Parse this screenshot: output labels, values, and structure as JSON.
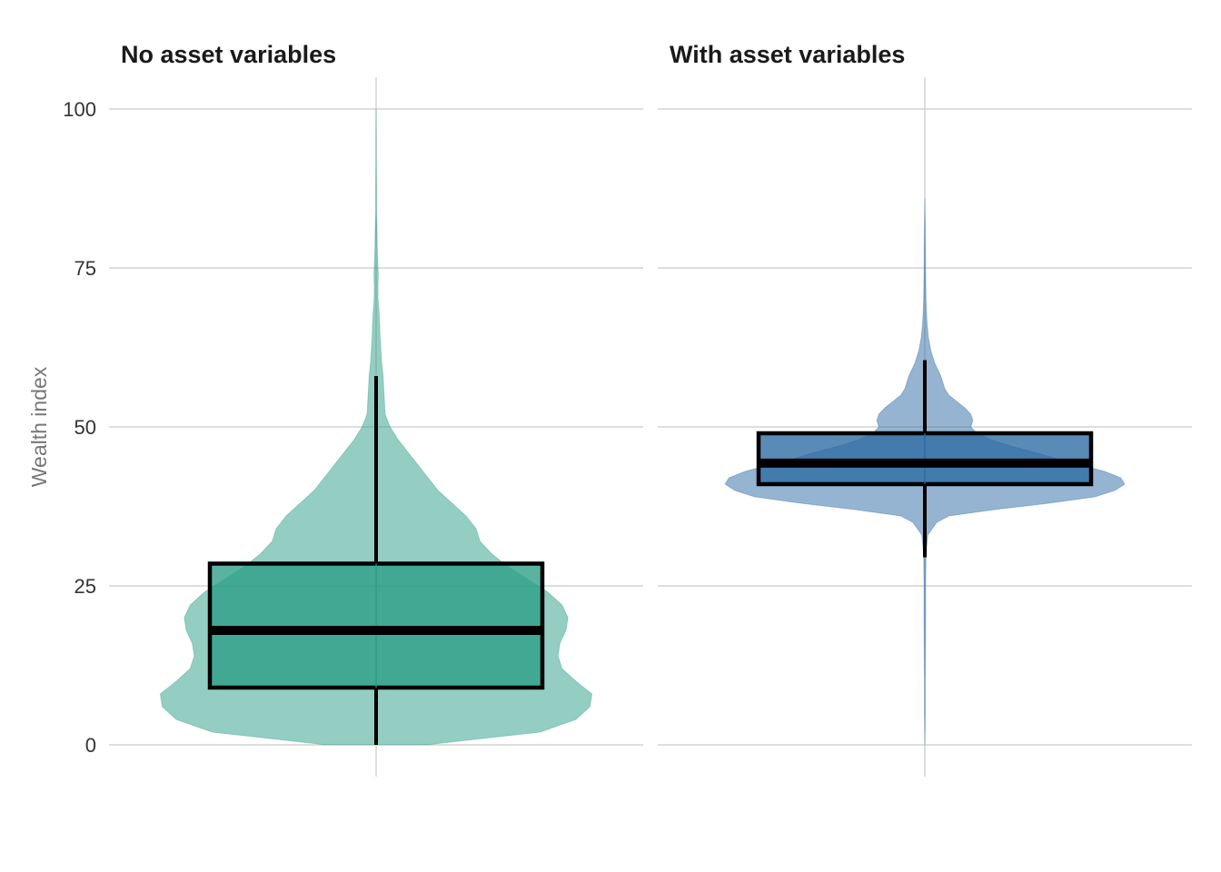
{
  "chart_data": {
    "type": "violin",
    "ylabel": "Wealth index",
    "ylim": [
      0,
      100
    ],
    "yticks": [
      0,
      25,
      50,
      75,
      100
    ],
    "yticklabels": [
      "0",
      "25",
      "50",
      "75",
      "100"
    ],
    "grid": true,
    "legend": "none",
    "panels": [
      {
        "title": "No asset variables",
        "fill_color": "#2a9d85",
        "box": {
          "whisker_low": 0,
          "q1": 9,
          "median": 18,
          "q3": 28.5,
          "whisker_high": 58
        },
        "density": [
          [
            0,
            0.25
          ],
          [
            2,
            0.82
          ],
          [
            4,
            1.0
          ],
          [
            6,
            1.07
          ],
          [
            8,
            1.08
          ],
          [
            10,
            1.0
          ],
          [
            12,
            0.93
          ],
          [
            14,
            0.91
          ],
          [
            16,
            0.92
          ],
          [
            18,
            0.95
          ],
          [
            20,
            0.96
          ],
          [
            22,
            0.93
          ],
          [
            24,
            0.86
          ],
          [
            26,
            0.76
          ],
          [
            28,
            0.66
          ],
          [
            30,
            0.58
          ],
          [
            32,
            0.52
          ],
          [
            34,
            0.5
          ],
          [
            36,
            0.45
          ],
          [
            38,
            0.38
          ],
          [
            40,
            0.31
          ],
          [
            42,
            0.26
          ],
          [
            44,
            0.21
          ],
          [
            46,
            0.16
          ],
          [
            48,
            0.11
          ],
          [
            50,
            0.07
          ],
          [
            52,
            0.045
          ],
          [
            54,
            0.042
          ],
          [
            56,
            0.038
          ],
          [
            58,
            0.035
          ],
          [
            60,
            0.028
          ],
          [
            62,
            0.024
          ],
          [
            64,
            0.02
          ],
          [
            66,
            0.018
          ],
          [
            68,
            0.015
          ],
          [
            70,
            0.01
          ],
          [
            72,
            0.009
          ],
          [
            74,
            0.011
          ],
          [
            76,
            0.008
          ],
          [
            78,
            0.006
          ],
          [
            80,
            0.005
          ],
          [
            82,
            0.004
          ],
          [
            84,
            0.002
          ],
          [
            88,
            0.002
          ],
          [
            92,
            0.001
          ],
          [
            96,
            0.001
          ],
          [
            100,
            0
          ]
        ]
      },
      {
        "title": "With asset variables",
        "fill_color": "#2b6aa3",
        "box": {
          "whisker_low": 29.5,
          "q1": 41,
          "median": 44.3,
          "q3": 49,
          "whisker_high": 60.5
        },
        "density": [
          [
            0,
            0
          ],
          [
            5,
            0.002
          ],
          [
            10,
            0.002
          ],
          [
            15,
            0.003
          ],
          [
            20,
            0.004
          ],
          [
            25,
            0.004
          ],
          [
            30,
            0.006
          ],
          [
            33,
            0.015
          ],
          [
            35,
            0.06
          ],
          [
            36,
            0.12
          ],
          [
            37,
            0.35
          ],
          [
            38,
            0.62
          ],
          [
            39,
            0.85
          ],
          [
            40,
            0.95
          ],
          [
            41,
            1.0
          ],
          [
            42,
            0.98
          ],
          [
            43,
            0.9
          ],
          [
            44,
            0.78
          ],
          [
            45,
            0.66
          ],
          [
            46,
            0.55
          ],
          [
            47,
            0.43
          ],
          [
            48,
            0.33
          ],
          [
            49,
            0.26
          ],
          [
            50,
            0.23
          ],
          [
            51,
            0.24
          ],
          [
            52,
            0.23
          ],
          [
            53,
            0.2
          ],
          [
            54,
            0.16
          ],
          [
            55,
            0.12
          ],
          [
            56,
            0.1
          ],
          [
            57,
            0.09
          ],
          [
            58,
            0.08
          ],
          [
            59,
            0.065
          ],
          [
            60,
            0.05
          ],
          [
            62,
            0.03
          ],
          [
            64,
            0.018
          ],
          [
            66,
            0.012
          ],
          [
            68,
            0.008
          ],
          [
            70,
            0.006
          ],
          [
            74,
            0.004
          ],
          [
            78,
            0.003
          ],
          [
            82,
            0.002
          ],
          [
            86,
            0
          ]
        ]
      }
    ]
  }
}
